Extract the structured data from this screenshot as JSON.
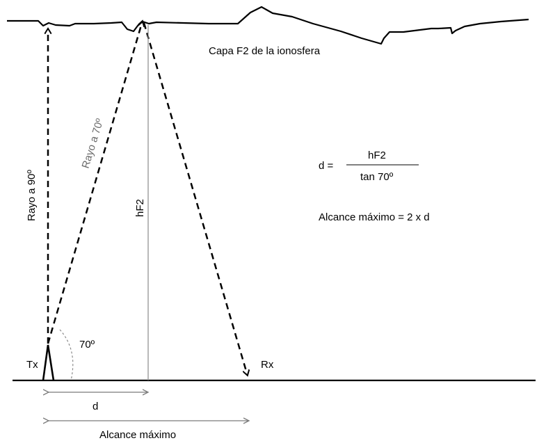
{
  "diagram": {
    "ionosphere_label": "Capa F2 de la ionosfera",
    "ray90_label": "Rayo a 90º",
    "ray70_label": "Rayo a 70º",
    "height_label": "hF2",
    "angle_label": "70º",
    "tx_label": "Tx",
    "rx_label": "Rx",
    "d_label": "d",
    "range_label": "Alcance máximo",
    "formula": {
      "lhs": "d =",
      "numerator": "hF2",
      "denominator": "tan 70º"
    },
    "range_formula": "Alcance máximo = 2 x d"
  },
  "colors": {
    "ink": "#000000",
    "gray": "#7a7a7a",
    "background": "#ffffff"
  }
}
